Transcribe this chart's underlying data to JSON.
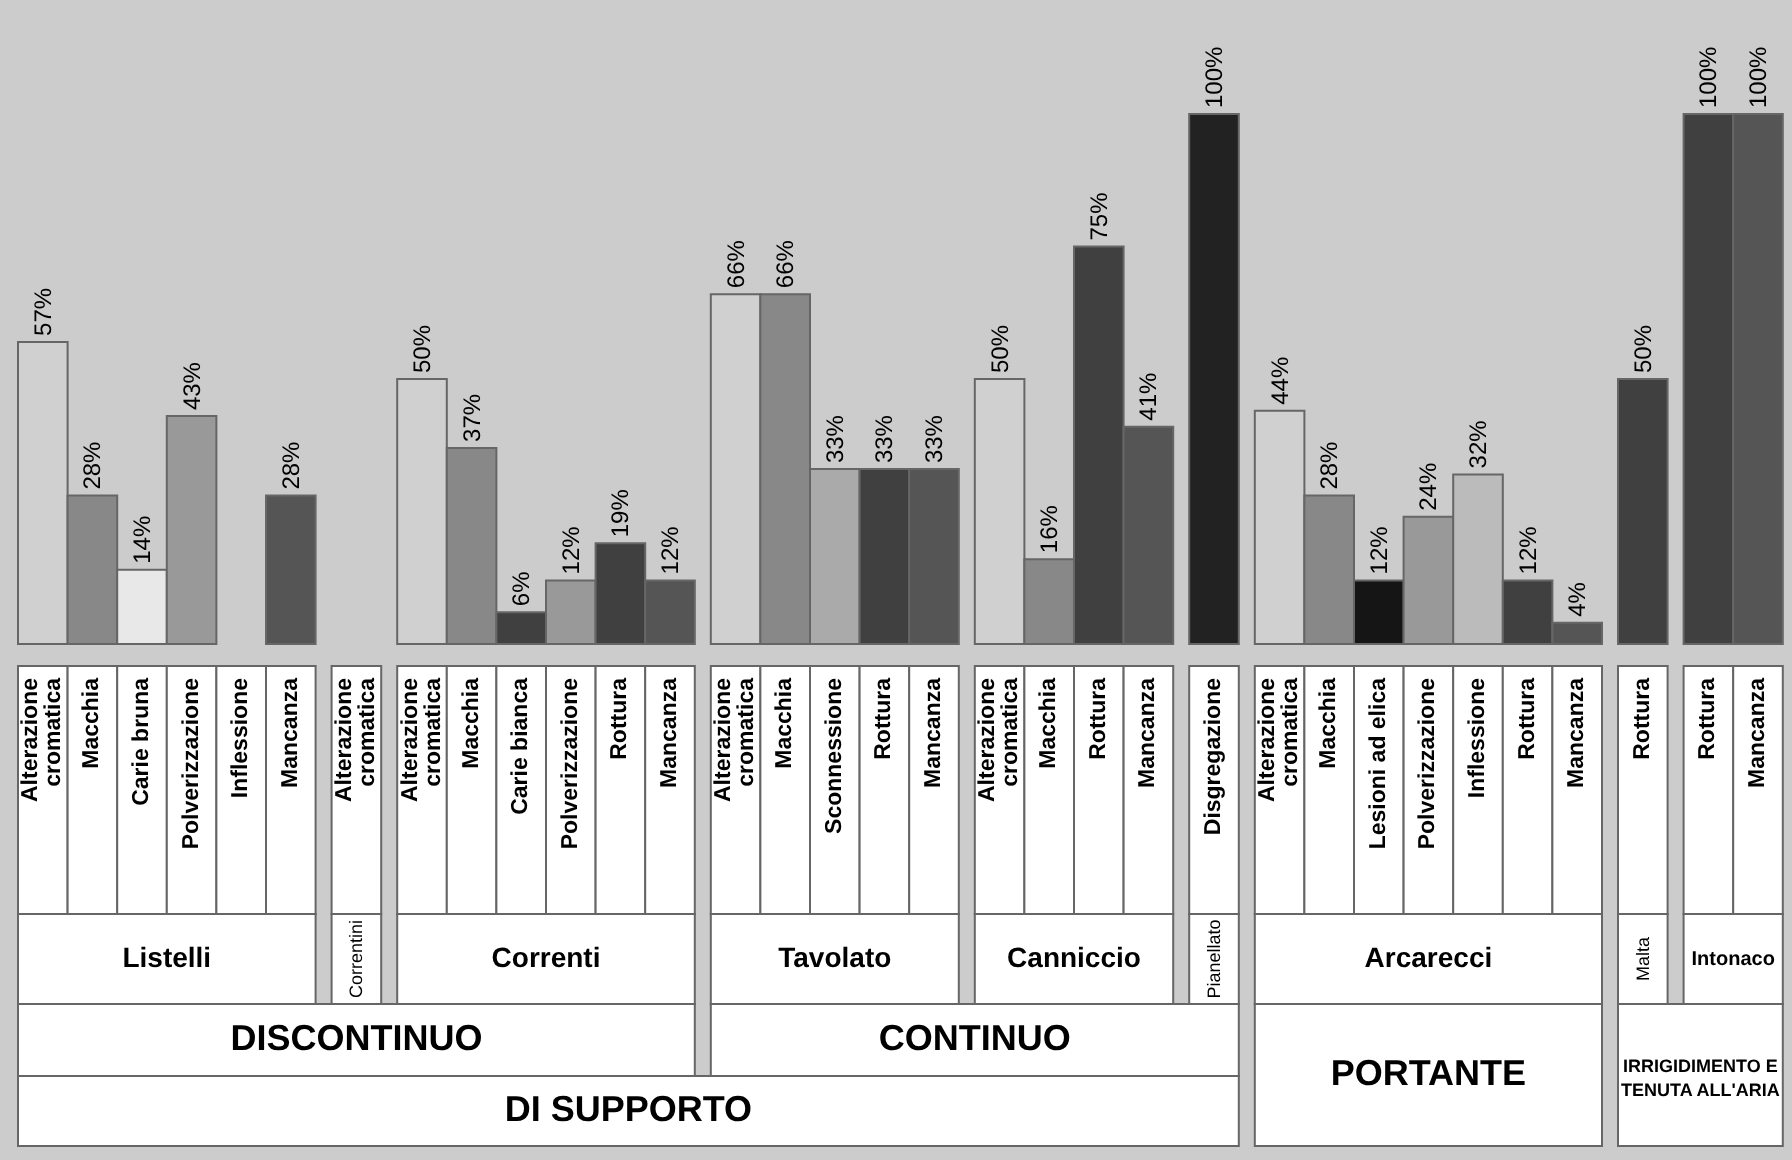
{
  "chart_data": {
    "type": "bar",
    "categories": [
      "Alterazione cromatica",
      "Macchia",
      "Carie bruna",
      "Polverizzazione",
      "Inflessione",
      "Mancanza",
      "Alterazione cromatica",
      "Alterazione cromatica",
      "Macchia",
      "Carie bianca",
      "Polverizzazione",
      "Rottura",
      "Mancanza",
      "Alterazione cromatica",
      "Macchia",
      "Sconnessione",
      "Rottura",
      "Mancanza",
      "Alterazione cromatica",
      "Macchia",
      "Rottura",
      "Mancanza",
      "Disgregazione",
      "Alterazione cromatica",
      "Macchia",
      "Lesioni ad elica",
      "Polverizzazione",
      "Inflessione",
      "Rottura",
      "Mancanza",
      "Rottura",
      "Rottura",
      "Mancanza"
    ],
    "values": [
      57,
      28,
      14,
      43,
      null,
      28,
      null,
      50,
      37,
      6,
      12,
      19,
      12,
      66,
      66,
      33,
      33,
      33,
      50,
      16,
      75,
      41,
      100,
      44,
      28,
      12,
      24,
      32,
      12,
      4,
      50,
      100,
      100
    ],
    "value_labels": [
      "57%",
      "28%",
      "14%",
      "43%",
      null,
      "28%",
      null,
      "50%",
      "37%",
      "6%",
      "12%",
      "19%",
      "12%",
      "66%",
      "66%",
      "33%",
      "33%",
      "33%",
      "50%",
      "16%",
      "75%",
      "41%",
      "100%",
      "44%",
      "28%",
      "12%",
      "24%",
      "32%",
      "12%",
      "4%",
      "50%",
      "100%",
      "100%"
    ],
    "colors": [
      "#d0d0d0",
      "#888888",
      "#e8e8e8",
      "#999999",
      null,
      "#555555",
      null,
      "#d0d0d0",
      "#888888",
      "#404040",
      "#999999",
      "#404040",
      "#555555",
      "#d0d0d0",
      "#888888",
      "#aaaaaa",
      "#404040",
      "#555555",
      "#d0d0d0",
      "#888888",
      "#404040",
      "#555555",
      "#222222",
      "#d0d0d0",
      "#888888",
      "#151515",
      "#999999",
      "#bbbbbb",
      "#404040",
      "#555555",
      "#404040",
      "#404040",
      "#555555"
    ],
    "annotations": [
      "Listelli",
      "Correntini",
      "Correnti",
      "Tavolato",
      "Canniccio",
      "Pianellato",
      "Arcarecci",
      "Malta",
      "Intonaco",
      "DISCONTINUO",
      "CONTINUO",
      "PORTANTE",
      "IRRIGIDIMENTO E TENUTA ALL'ARIA",
      "DI SUPPORTO"
    ],
    "relative": false
  }
}
